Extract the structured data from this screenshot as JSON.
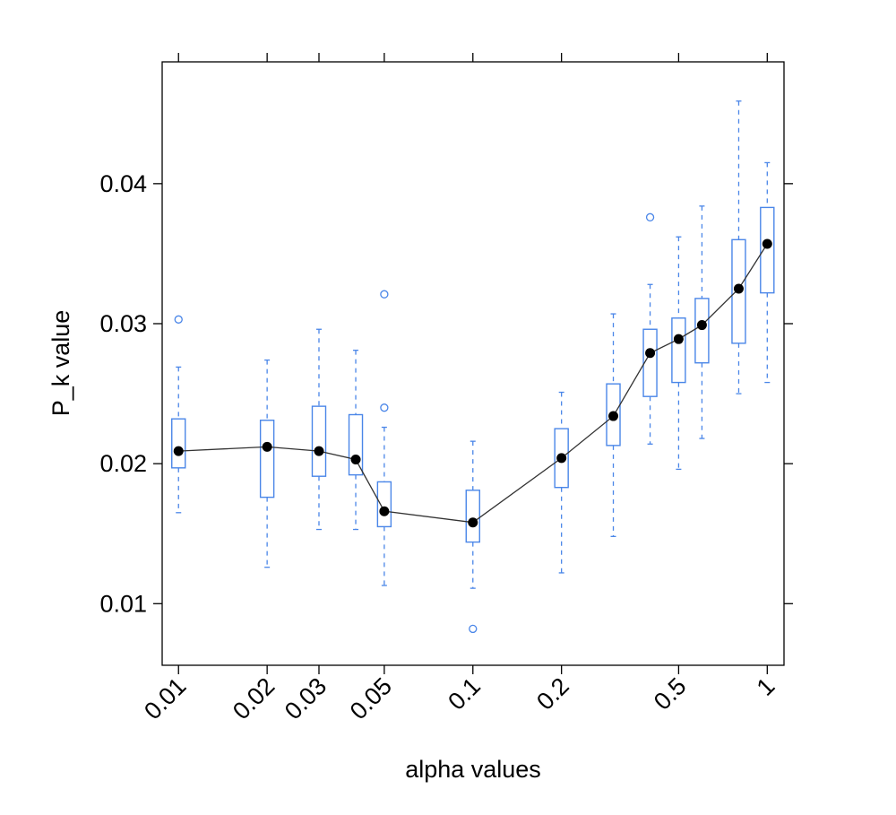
{
  "chart_data": {
    "type": "box",
    "xlabel": "alpha values",
    "ylabel": "P_k value",
    "x_scale": "log",
    "xlim": [
      0.0088,
      1.14
    ],
    "ylim": [
      0.0056,
      0.0487
    ],
    "x_ticks": [
      {
        "value": 0.01,
        "label": "0.01"
      },
      {
        "value": 0.02,
        "label": "0.02"
      },
      {
        "value": 0.03,
        "label": "0.03"
      },
      {
        "value": 0.05,
        "label": "0.05"
      },
      {
        "value": 0.1,
        "label": "0.1"
      },
      {
        "value": 0.2,
        "label": "0.2"
      },
      {
        "value": 0.5,
        "label": "0.5"
      },
      {
        "value": 1,
        "label": "1"
      }
    ],
    "top_tick_values": [
      0.01,
      0.02,
      0.03,
      0.05,
      0.1,
      0.2,
      0.5,
      1
    ],
    "y_ticks": [
      {
        "value": 0.01,
        "label": "0.01"
      },
      {
        "value": 0.02,
        "label": "0.02"
      },
      {
        "value": 0.03,
        "label": "0.03"
      },
      {
        "value": 0.04,
        "label": "0.04"
      }
    ],
    "box_color": "#4a86e8",
    "median_color": "#000000",
    "line_color": "#333333",
    "boxes": [
      {
        "alpha": 0.01,
        "whisker_low": 0.0165,
        "q1": 0.0197,
        "median": 0.0209,
        "q3": 0.0232,
        "whisker_high": 0.0269,
        "outliers": [
          0.0303
        ]
      },
      {
        "alpha": 0.02,
        "whisker_low": 0.0126,
        "q1": 0.0176,
        "median": 0.0212,
        "q3": 0.0231,
        "whisker_high": 0.0274,
        "outliers": []
      },
      {
        "alpha": 0.03,
        "whisker_low": 0.0153,
        "q1": 0.0191,
        "median": 0.0209,
        "q3": 0.0241,
        "whisker_high": 0.0296,
        "outliers": []
      },
      {
        "alpha": 0.04,
        "whisker_low": 0.0153,
        "q1": 0.0192,
        "median": 0.0203,
        "q3": 0.0235,
        "whisker_high": 0.0281,
        "outliers": []
      },
      {
        "alpha": 0.05,
        "whisker_low": 0.0113,
        "q1": 0.0155,
        "median": 0.0166,
        "q3": 0.0187,
        "whisker_high": 0.0226,
        "outliers": [
          0.024,
          0.0321
        ]
      },
      {
        "alpha": 0.1,
        "whisker_low": 0.0111,
        "q1": 0.0144,
        "median": 0.0158,
        "q3": 0.0181,
        "whisker_high": 0.0216,
        "outliers": [
          0.0082
        ]
      },
      {
        "alpha": 0.2,
        "whisker_low": 0.0122,
        "q1": 0.0183,
        "median": 0.0204,
        "q3": 0.0225,
        "whisker_high": 0.0251,
        "outliers": []
      },
      {
        "alpha": 0.3,
        "whisker_low": 0.0148,
        "q1": 0.0213,
        "median": 0.0234,
        "q3": 0.0257,
        "whisker_high": 0.0307,
        "outliers": []
      },
      {
        "alpha": 0.4,
        "whisker_low": 0.0214,
        "q1": 0.0248,
        "median": 0.0279,
        "q3": 0.0296,
        "whisker_high": 0.0328,
        "outliers": [
          0.0376
        ]
      },
      {
        "alpha": 0.5,
        "whisker_low": 0.0196,
        "q1": 0.0258,
        "median": 0.0289,
        "q3": 0.0304,
        "whisker_high": 0.0362,
        "outliers": []
      },
      {
        "alpha": 0.6,
        "whisker_low": 0.0218,
        "q1": 0.0272,
        "median": 0.0299,
        "q3": 0.0318,
        "whisker_high": 0.0384,
        "outliers": []
      },
      {
        "alpha": 0.8,
        "whisker_low": 0.025,
        "q1": 0.0286,
        "median": 0.0325,
        "q3": 0.036,
        "whisker_high": 0.0459,
        "outliers": []
      },
      {
        "alpha": 1,
        "whisker_low": 0.0258,
        "q1": 0.0322,
        "median": 0.0357,
        "q3": 0.0383,
        "whisker_high": 0.0415,
        "outliers": []
      }
    ]
  }
}
